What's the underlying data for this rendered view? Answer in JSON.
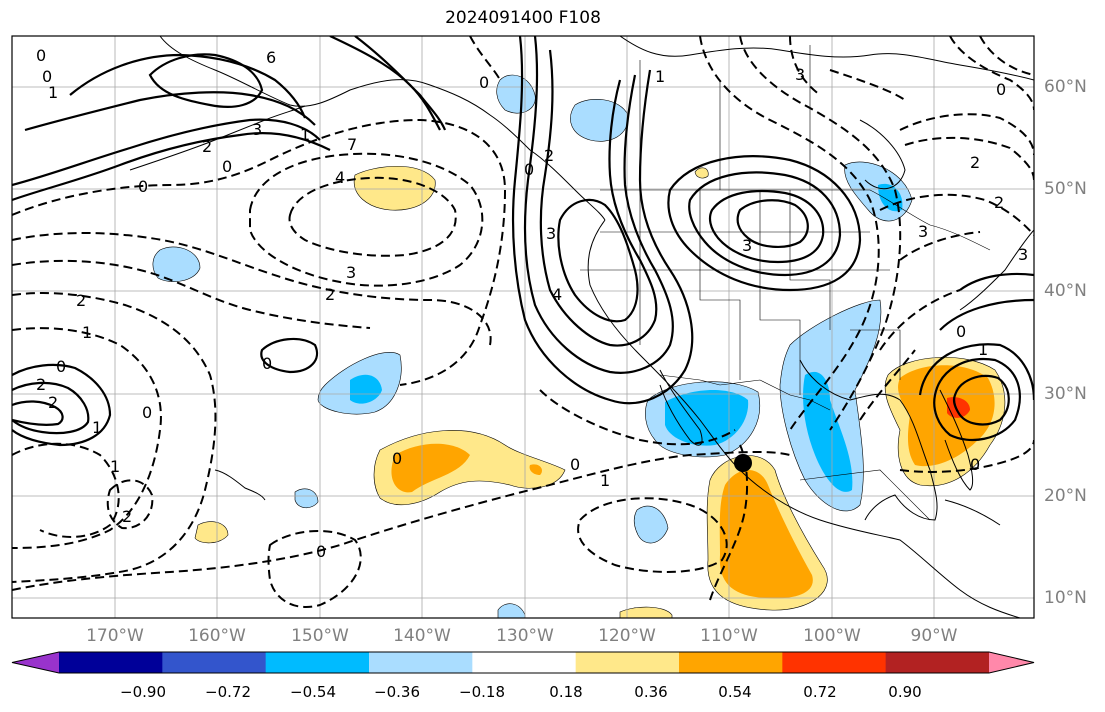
{
  "title": "2024091400 F108",
  "lat_labels": [
    "60°N",
    "50°N",
    "40°N",
    "30°N",
    "20°N",
    "10°N"
  ],
  "lon_labels": [
    "170°W",
    "160°W",
    "150°W",
    "140°W",
    "130°W",
    "120°W",
    "110°W",
    "100°W",
    "90°W"
  ],
  "colorbar": {
    "colors": [
      "#9933cc",
      "#000099",
      "#3355cc",
      "#00bbff",
      "#aaddff",
      "#ffffff",
      "#ffe88a",
      "#ffa500",
      "#ff3300",
      "#b22222",
      "#ff88aa"
    ],
    "ticks": [
      "−0.90",
      "−0.72",
      "−0.54",
      "−0.36",
      "−0.18",
      "0.18",
      "0.36",
      "0.54",
      "0.72",
      "0.90"
    ]
  },
  "contour_labels": [
    "0",
    "0",
    "1",
    "6",
    "3",
    "2",
    "1",
    "7",
    "0",
    "0",
    "4",
    "3",
    "2",
    "2",
    "1",
    "0",
    "2",
    "2",
    "0",
    "1",
    "2",
    "1",
    "0",
    "0",
    "3",
    "4",
    "3",
    "3",
    "2",
    "1",
    "0",
    "2",
    "3",
    "2",
    "0",
    "0",
    "1",
    "0",
    "0",
    "0",
    "0",
    "1",
    "3"
  ]
}
